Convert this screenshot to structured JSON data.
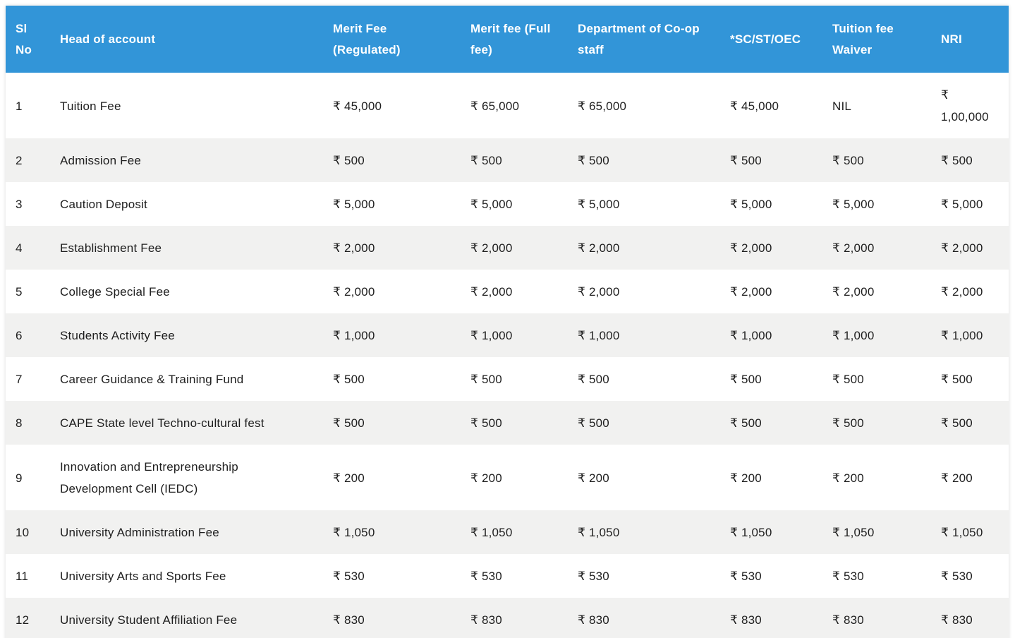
{
  "theme": {
    "header_bg": "#3295d8",
    "header_text": "#ffffff",
    "stripe_bg": "#f1f1f0",
    "row_bg": "#ffffff",
    "text_color": "#1e1e1e"
  },
  "table": {
    "columns": [
      {
        "key": "sl",
        "label": "Sl No"
      },
      {
        "key": "head",
        "label": "Head of account"
      },
      {
        "key": "merit_regulated",
        "label": "Merit Fee (Regulated)"
      },
      {
        "key": "merit_full",
        "label": "Merit fee (Full fee)"
      },
      {
        "key": "coop_staff",
        "label": "Department of Co-op staff"
      },
      {
        "key": "sc_st_oec",
        "label": "*SC/ST/OEC"
      },
      {
        "key": "tuition_waiver",
        "label": "Tuition fee Waiver"
      },
      {
        "key": "nri",
        "label": "NRI"
      }
    ],
    "rows": [
      {
        "sl": "1",
        "head": "Tuition Fee",
        "merit_regulated": "₹ 45,000",
        "merit_full": "₹ 65,000",
        "coop_staff": "₹ 65,000",
        "sc_st_oec": "₹ 45,000",
        "tuition_waiver": "NIL",
        "nri": "₹ 1,00,000"
      },
      {
        "sl": "2",
        "head": "Admission Fee",
        "merit_regulated": "₹ 500",
        "merit_full": "₹ 500",
        "coop_staff": "₹ 500",
        "sc_st_oec": "₹ 500",
        "tuition_waiver": "₹ 500",
        "nri": "₹ 500"
      },
      {
        "sl": "3",
        "head": "Caution Deposit",
        "merit_regulated": "₹ 5,000",
        "merit_full": "₹ 5,000",
        "coop_staff": "₹ 5,000",
        "sc_st_oec": "₹ 5,000",
        "tuition_waiver": "₹ 5,000",
        "nri": "₹ 5,000"
      },
      {
        "sl": "4",
        "head": "Establishment Fee",
        "merit_regulated": "₹ 2,000",
        "merit_full": "₹ 2,000",
        "coop_staff": "₹ 2,000",
        "sc_st_oec": "₹ 2,000",
        "tuition_waiver": "₹ 2,000",
        "nri": "₹ 2,000"
      },
      {
        "sl": "5",
        "head": "College Special Fee",
        "merit_regulated": "₹ 2,000",
        "merit_full": "₹ 2,000",
        "coop_staff": "₹ 2,000",
        "sc_st_oec": "₹ 2,000",
        "tuition_waiver": "₹ 2,000",
        "nri": "₹ 2,000"
      },
      {
        "sl": "6",
        "head": "Students Activity Fee",
        "merit_regulated": "₹ 1,000",
        "merit_full": "₹ 1,000",
        "coop_staff": "₹ 1,000",
        "sc_st_oec": "₹ 1,000",
        "tuition_waiver": "₹ 1,000",
        "nri": "₹ 1,000"
      },
      {
        "sl": "7",
        "head": "Career Guidance & Training Fund",
        "merit_regulated": "₹ 500",
        "merit_full": "₹ 500",
        "coop_staff": "₹ 500",
        "sc_st_oec": "₹ 500",
        "tuition_waiver": "₹ 500",
        "nri": "₹ 500"
      },
      {
        "sl": "8",
        "head": "CAPE State level Techno-cultural fest",
        "merit_regulated": "₹ 500",
        "merit_full": "₹ 500",
        "coop_staff": "₹ 500",
        "sc_st_oec": "₹ 500",
        "tuition_waiver": "₹ 500",
        "nri": "₹ 500"
      },
      {
        "sl": "9",
        "head": "Innovation and Entrepreneurship Development Cell (IEDC)",
        "merit_regulated": "₹ 200",
        "merit_full": "₹ 200",
        "coop_staff": "₹ 200",
        "sc_st_oec": "₹ 200",
        "tuition_waiver": "₹ 200",
        "nri": "₹ 200"
      },
      {
        "sl": "10",
        "head": "University Administration Fee",
        "merit_regulated": "₹ 1,050",
        "merit_full": "₹ 1,050",
        "coop_staff": "₹ 1,050",
        "sc_st_oec": "₹ 1,050",
        "tuition_waiver": "₹ 1,050",
        "nri": "₹ 1,050"
      },
      {
        "sl": "11",
        "head": "University Arts and Sports Fee",
        "merit_regulated": "₹ 530",
        "merit_full": "₹ 530",
        "coop_staff": "₹ 530",
        "sc_st_oec": "₹ 530",
        "tuition_waiver": "₹ 530",
        "nri": "₹ 530"
      },
      {
        "sl": "12",
        "head": "University Student Affiliation Fee",
        "merit_regulated": "₹ 830",
        "merit_full": "₹ 830",
        "coop_staff": "₹ 830",
        "sc_st_oec": "₹ 830",
        "tuition_waiver": "₹ 830",
        "nri": "₹ 830"
      }
    ]
  }
}
